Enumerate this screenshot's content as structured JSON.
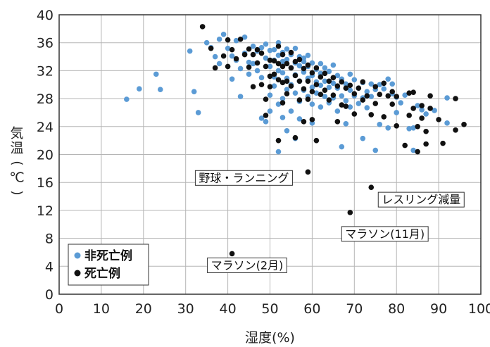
{
  "chart_data": {
    "type": "scatter",
    "xlabel": "湿度(%)",
    "ylabel": "気温(℃)",
    "xlim": [
      0,
      100
    ],
    "ylim": [
      0,
      40
    ],
    "xticks": [
      "0",
      "10",
      "20",
      "30",
      "40",
      "50",
      "60",
      "70",
      "80",
      "90",
      "100"
    ],
    "yticks": [
      "0",
      "4",
      "8",
      "12",
      "16",
      "20",
      "24",
      "28",
      "32",
      "36",
      "40"
    ],
    "grid": true,
    "legend_position": "bottom-left",
    "series": [
      {
        "name": "非死亡例",
        "color": "#5b9bd5",
        "points": [
          [
            16,
            27.9
          ],
          [
            19,
            29.4
          ],
          [
            23,
            31.5
          ],
          [
            24,
            29.3
          ],
          [
            31,
            34.8
          ],
          [
            32,
            29
          ],
          [
            33,
            26
          ],
          [
            35,
            36
          ],
          [
            36,
            35.3
          ],
          [
            37,
            34
          ],
          [
            38,
            33
          ],
          [
            38,
            36.5
          ],
          [
            39,
            37.2
          ],
          [
            40,
            35.2
          ],
          [
            41,
            34.1
          ],
          [
            41,
            30.8
          ],
          [
            42,
            33.5
          ],
          [
            42,
            36.3
          ],
          [
            43,
            32.3
          ],
          [
            43,
            28.3
          ],
          [
            44,
            36.8
          ],
          [
            44,
            34.5
          ],
          [
            45,
            33.2
          ],
          [
            45,
            31.5
          ],
          [
            46,
            35.5
          ],
          [
            46,
            33
          ],
          [
            47,
            32
          ],
          [
            47,
            34.8
          ],
          [
            48,
            35.3
          ],
          [
            48,
            31
          ],
          [
            48,
            25.2
          ],
          [
            49,
            24.7
          ],
          [
            49,
            33.8
          ],
          [
            49,
            35.8
          ],
          [
            50,
            34.9
          ],
          [
            50,
            32.6
          ],
          [
            50,
            28.5
          ],
          [
            50,
            26.2
          ],
          [
            51,
            35
          ],
          [
            51,
            33.5
          ],
          [
            51,
            31.1
          ],
          [
            51,
            29.8
          ],
          [
            52,
            36
          ],
          [
            52,
            34.2
          ],
          [
            52,
            32
          ],
          [
            52,
            20.4
          ],
          [
            52,
            27.2
          ],
          [
            53,
            34.6
          ],
          [
            53,
            33.3
          ],
          [
            53,
            31.7
          ],
          [
            53,
            28
          ],
          [
            53,
            25.3
          ],
          [
            54,
            35.1
          ],
          [
            54,
            33.6
          ],
          [
            54,
            30.9
          ],
          [
            54,
            29.3
          ],
          [
            54,
            23.4
          ],
          [
            55,
            34.3
          ],
          [
            55,
            32.4
          ],
          [
            55,
            30
          ],
          [
            55,
            26.2
          ],
          [
            56,
            35.2
          ],
          [
            56,
            33.1
          ],
          [
            56,
            31.4
          ],
          [
            56,
            28.8
          ],
          [
            56,
            22.3
          ],
          [
            57,
            34
          ],
          [
            57,
            32.7
          ],
          [
            57,
            30.5
          ],
          [
            57,
            27.6
          ],
          [
            57,
            25.1
          ],
          [
            58,
            33.3
          ],
          [
            58,
            31.8
          ],
          [
            58,
            29.2
          ],
          [
            58,
            33.8
          ],
          [
            59,
            32.6
          ],
          [
            59,
            30.9
          ],
          [
            59,
            28.3
          ],
          [
            59,
            34.2
          ],
          [
            60,
            33.1
          ],
          [
            60,
            31.3
          ],
          [
            60,
            29.6
          ],
          [
            60,
            27.2
          ],
          [
            60,
            24.5
          ],
          [
            61,
            32.2
          ],
          [
            61,
            30.4
          ],
          [
            61,
            28.8
          ],
          [
            62,
            33
          ],
          [
            62,
            31.6
          ],
          [
            62,
            29.9
          ],
          [
            62,
            26.8
          ],
          [
            63,
            32.4
          ],
          [
            63,
            30.5
          ],
          [
            63,
            28.3
          ],
          [
            64,
            31.9
          ],
          [
            64,
            29.6
          ],
          [
            64,
            27.4
          ],
          [
            65,
            32.8
          ],
          [
            65,
            30.2
          ],
          [
            65,
            28.1
          ],
          [
            66,
            31.3
          ],
          [
            66,
            29.5
          ],
          [
            66,
            26.2
          ],
          [
            67,
            30.8
          ],
          [
            67,
            28.4
          ],
          [
            67,
            21.1
          ],
          [
            68,
            30.1
          ],
          [
            68,
            27.7
          ],
          [
            68,
            24.4
          ],
          [
            69,
            31.5
          ],
          [
            69,
            29.2
          ],
          [
            69,
            26.8
          ],
          [
            70,
            30.7
          ],
          [
            70,
            28.4
          ],
          [
            71,
            29.5
          ],
          [
            71,
            27.3
          ],
          [
            72,
            30.3
          ],
          [
            72,
            28.1
          ],
          [
            72,
            22.3
          ],
          [
            73,
            29
          ],
          [
            73,
            26.7
          ],
          [
            74,
            30.1
          ],
          [
            74,
            28.3
          ],
          [
            75,
            29.3
          ],
          [
            75,
            20.6
          ],
          [
            76,
            30
          ],
          [
            76,
            24.3
          ],
          [
            77,
            29.4
          ],
          [
            78,
            30.8
          ],
          [
            78,
            23.8
          ],
          [
            79,
            28.7
          ],
          [
            79,
            30.1
          ],
          [
            80,
            28.2
          ],
          [
            80,
            26
          ],
          [
            81,
            27.4
          ],
          [
            82,
            28.5
          ],
          [
            83,
            23.7
          ],
          [
            84,
            20.6
          ],
          [
            84,
            23.8
          ],
          [
            85,
            27
          ],
          [
            86,
            26.4
          ],
          [
            87,
            25.8
          ],
          [
            89,
            26.3
          ],
          [
            92,
            28.1
          ],
          [
            92,
            24.5
          ]
        ]
      },
      {
        "name": "死亡例",
        "color": "#111111",
        "points": [
          [
            34,
            38.3
          ],
          [
            36,
            35.2
          ],
          [
            37,
            32.4
          ],
          [
            39,
            34.1
          ],
          [
            40,
            36.4
          ],
          [
            40,
            32.6
          ],
          [
            41,
            35
          ],
          [
            42,
            33.7
          ],
          [
            43,
            36.5
          ],
          [
            44,
            34.3
          ],
          [
            45,
            35.1
          ],
          [
            45,
            32.5
          ],
          [
            46,
            34.3
          ],
          [
            46,
            29.7
          ],
          [
            47,
            35
          ],
          [
            47,
            33.1
          ],
          [
            48,
            34.5
          ],
          [
            48,
            30
          ],
          [
            49,
            32.6
          ],
          [
            49,
            27.9
          ],
          [
            49,
            25.6
          ],
          [
            50,
            33.5
          ],
          [
            50,
            31.2
          ],
          [
            50,
            29.7
          ],
          [
            51,
            33.4
          ],
          [
            51,
            31.5
          ],
          [
            52,
            35.5
          ],
          [
            52,
            33
          ],
          [
            52,
            30.7
          ],
          [
            52,
            22
          ],
          [
            53,
            34.3
          ],
          [
            53,
            32.6
          ],
          [
            53,
            30.3
          ],
          [
            53,
            27.4
          ],
          [
            54,
            33
          ],
          [
            54,
            30.5
          ],
          [
            54,
            28.7
          ],
          [
            55,
            34.6
          ],
          [
            55,
            32.4
          ],
          [
            55,
            29.8
          ],
          [
            56,
            33.3
          ],
          [
            56,
            31.3
          ],
          [
            56,
            22.4
          ],
          [
            57,
            33.6
          ],
          [
            57,
            30.5
          ],
          [
            57,
            27.8
          ],
          [
            58,
            32.3
          ],
          [
            58,
            29.4
          ],
          [
            58,
            24.7
          ],
          [
            59,
            32.8
          ],
          [
            59,
            30.5
          ],
          [
            59,
            27.9
          ],
          [
            59,
            17.5
          ],
          [
            60,
            31.7
          ],
          [
            60,
            29
          ],
          [
            60,
            25
          ],
          [
            61,
            32.4
          ],
          [
            61,
            30
          ],
          [
            61,
            22
          ],
          [
            62,
            31.1
          ],
          [
            62,
            28.6
          ],
          [
            63,
            31.6
          ],
          [
            63,
            29.2
          ],
          [
            64,
            30.5
          ],
          [
            64,
            27.8
          ],
          [
            65,
            31
          ],
          [
            65,
            28.5
          ],
          [
            66,
            29.8
          ],
          [
            66,
            24.7
          ],
          [
            67,
            30.4
          ],
          [
            67,
            27.1
          ],
          [
            68,
            29.5
          ],
          [
            68,
            26.9
          ],
          [
            69,
            29.9
          ],
          [
            69,
            11.7
          ],
          [
            70,
            28.7
          ],
          [
            70,
            25.8
          ],
          [
            71,
            29.5
          ],
          [
            72,
            30.4
          ],
          [
            72,
            27.8
          ],
          [
            73,
            28.4
          ],
          [
            74,
            15.3
          ],
          [
            74,
            25.7
          ],
          [
            75,
            29.7
          ],
          [
            75,
            27.3
          ],
          [
            76,
            28.6
          ],
          [
            77,
            30.2
          ],
          [
            77,
            25.4
          ],
          [
            78,
            28.4
          ],
          [
            79,
            29
          ],
          [
            79,
            27.2
          ],
          [
            80,
            24.1
          ],
          [
            80,
            28.3
          ],
          [
            82,
            21.3
          ],
          [
            83,
            28.8
          ],
          [
            83,
            25.6
          ],
          [
            84,
            28.9
          ],
          [
            84,
            26.6
          ],
          [
            85,
            20.4
          ],
          [
            85,
            24
          ],
          [
            86,
            25.2
          ],
          [
            86,
            27
          ],
          [
            87,
            23.3
          ],
          [
            87,
            21.5
          ],
          [
            88,
            28.4
          ],
          [
            88,
            26.6
          ],
          [
            90,
            25
          ],
          [
            91,
            21.6
          ],
          [
            94,
            28
          ],
          [
            94,
            23.5
          ],
          [
            96,
            24.3
          ],
          [
            41,
            5.8
          ]
        ]
      }
    ],
    "annotations": [
      {
        "text": "野球・ランニング",
        "point": [
          59,
          17.5
        ]
      },
      {
        "text": "レスリング減量",
        "point": [
          74,
          15.3
        ]
      },
      {
        "text": "マラソン(11月)",
        "point": [
          69,
          11.7
        ]
      },
      {
        "text": "マラソン(2月)",
        "point": [
          41,
          5.8
        ]
      }
    ]
  }
}
